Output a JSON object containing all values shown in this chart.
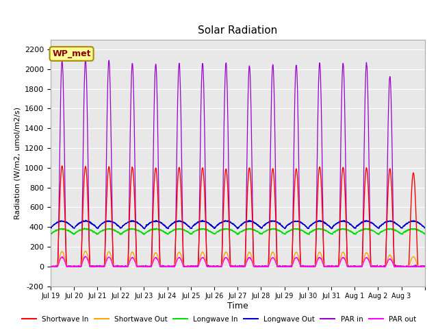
{
  "title": "Solar Radiation",
  "ylabel": "Radiation (W/m2, umol/m2/s)",
  "xlabel": "Time",
  "ylim": [
    -200,
    2300
  ],
  "yticks": [
    -200,
    0,
    200,
    400,
    600,
    800,
    1000,
    1200,
    1400,
    1600,
    1800,
    2000,
    2200
  ],
  "num_days": 16,
  "day_labels": [
    "Jul 19",
    "Jul 20",
    "Jul 21",
    "Jul 22",
    "Jul 23",
    "Jul 24",
    "Jul 25",
    "Jul 26",
    "Jul 27",
    "Jul 28",
    "Jul 29",
    "Jul 30",
    "Jul 31",
    "Aug 1",
    "Aug 2",
    "Aug 3"
  ],
  "series_colors": {
    "shortwave_in": "#ff0000",
    "shortwave_out": "#ffa500",
    "longwave_in": "#00dd00",
    "longwave_out": "#0000cc",
    "par_in": "#9900cc",
    "par_out": "#ff00ff"
  },
  "legend_labels": [
    "Shortwave In",
    "Shortwave Out",
    "Longwave In",
    "Longwave Out",
    "PAR in",
    "PAR out"
  ],
  "annotation_text": "WP_met",
  "annotation_box_color": "#ffff99",
  "annotation_border_color": "#aa8800",
  "background_color": "#e8e8e8",
  "grid_color": "#ffffff",
  "shortwave_in_peaks": [
    1020,
    1015,
    1010,
    1005,
    1000,
    1005,
    1000,
    990,
    1000,
    990,
    990,
    1010,
    1005,
    1000,
    990,
    950
  ],
  "shortwave_out_peaks": [
    150,
    155,
    150,
    145,
    140,
    145,
    145,
    145,
    145,
    145,
    145,
    145,
    145,
    140,
    115,
    100
  ],
  "longwave_in_base": 330,
  "longwave_out_base": 390,
  "longwave_in_peak_add": 50,
  "longwave_out_peak_add": 70,
  "par_in_peaks": [
    2080,
    2090,
    2090,
    2060,
    2050,
    2060,
    2060,
    2060,
    2035,
    2050,
    2050,
    2060,
    2060,
    2060,
    1930,
    0
  ],
  "par_out_peaks": [
    95,
    100,
    95,
    90,
    90,
    90,
    90,
    90,
    90,
    90,
    90,
    90,
    90,
    90,
    75,
    0
  ]
}
